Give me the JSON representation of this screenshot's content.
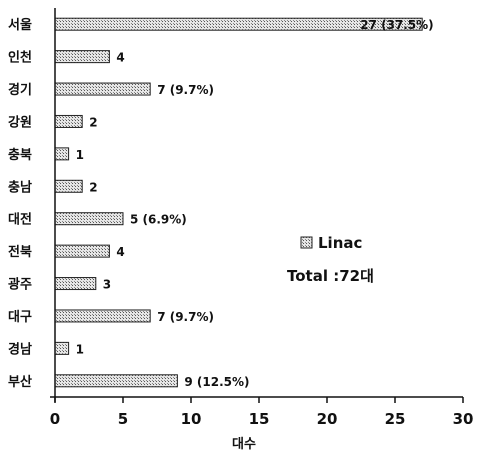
{
  "chart_data": {
    "type": "bar",
    "orientation": "horizontal",
    "categories": [
      "서울",
      "인천",
      "경기",
      "강원",
      "충북",
      "충남",
      "대전",
      "전북",
      "광주",
      "대구",
      "경남",
      "부산"
    ],
    "values": [
      27,
      4,
      7,
      2,
      1,
      2,
      5,
      4,
      3,
      7,
      1,
      9
    ],
    "data_labels": [
      "27 (37.5%)",
      "4",
      "7 (9.7%)",
      "2",
      "1",
      "2",
      "5 (6.9%)",
      "4",
      "3",
      "7 (9.7%)",
      "1",
      "9 (12.5%)"
    ],
    "series": [
      {
        "name": "Linac",
        "values": [
          27,
          4,
          7,
          2,
          1,
          2,
          5,
          4,
          3,
          7,
          1,
          9
        ]
      }
    ],
    "xlabel": "대수",
    "xlim": [
      0,
      30
    ],
    "xticks": [
      0,
      5,
      10,
      15,
      20,
      25,
      30
    ],
    "legend": {
      "entry": "Linac",
      "position": "right"
    },
    "annotation": "Total :72대",
    "grid": false,
    "colors": {
      "bar_fill": "#d4d4d4",
      "bar_stroke": "#222222"
    }
  }
}
